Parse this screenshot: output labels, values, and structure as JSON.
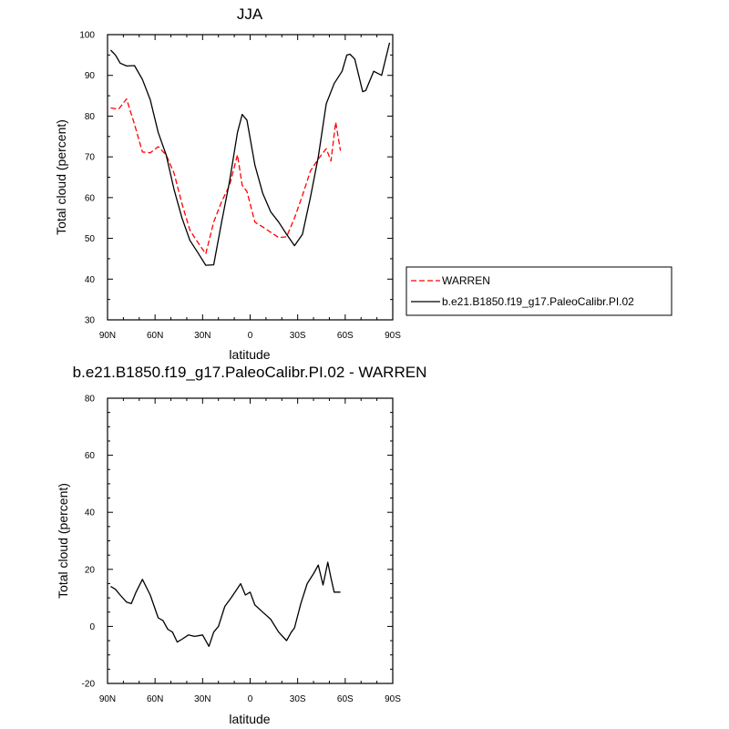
{
  "chart_data": [
    {
      "type": "line",
      "title": "JJA",
      "xlabel": "latitude",
      "ylabel": "Total cloud (percent)",
      "xlim": [
        90,
        -90
      ],
      "ylim": [
        30,
        100
      ],
      "xticks": [
        90,
        60,
        30,
        0,
        -30,
        -60,
        -90
      ],
      "xtick_labels": [
        "90N",
        "60N",
        "30N",
        "0",
        "30S",
        "60S",
        "90S"
      ],
      "yticks": [
        30,
        40,
        50,
        60,
        70,
        80,
        90,
        100
      ],
      "ytick_labels": [
        "30",
        "40",
        "50",
        "60",
        "70",
        "80",
        "90",
        "100"
      ],
      "legend": "outside-right",
      "series": [
        {
          "name": "WARREN",
          "color": "#ff0000",
          "style": "dashed",
          "x": [
            88,
            83,
            78,
            73,
            68,
            63,
            58,
            53,
            48,
            43,
            38,
            33,
            28,
            23,
            18,
            13,
            8,
            5,
            2,
            -3,
            -8,
            -13,
            -18,
            -23,
            -28,
            -33,
            -38,
            -43,
            -48,
            -51,
            -54,
            -57
          ],
          "y": [
            82,
            81.7,
            84.2,
            78,
            71.2,
            71,
            72.5,
            70.5,
            66,
            58.5,
            52,
            49,
            46.2,
            54,
            59,
            63,
            70.5,
            63,
            61.5,
            54,
            52.8,
            51.5,
            50.2,
            50.4,
            55,
            60.5,
            66.5,
            69.5,
            72,
            69,
            78.5,
            71.5
          ]
        },
        {
          "name": "b.e21.B1850.f19_g17.PaleoCalibr.PI.02",
          "color": "#000000",
          "style": "solid",
          "x": [
            88,
            85,
            82,
            78,
            73,
            68,
            63,
            58,
            53,
            48,
            43,
            38,
            33,
            28,
            23,
            18,
            13,
            8,
            5,
            2,
            -3,
            -8,
            -13,
            -18,
            -23,
            -28,
            -33,
            -38,
            -43,
            -48,
            -53,
            -58,
            -61,
            -63,
            -66,
            -71,
            -73,
            -78,
            -83,
            -88
          ],
          "y": [
            96.2,
            95,
            93,
            92.3,
            92.4,
            89,
            84,
            76,
            70.5,
            62,
            55,
            49.5,
            46.5,
            43.4,
            43.5,
            54,
            64,
            76,
            80.4,
            79,
            68,
            61,
            56.5,
            54,
            51,
            48.2,
            51,
            60,
            70,
            83,
            88,
            91,
            95,
            95.2,
            94,
            86,
            86.3,
            91,
            90,
            98
          ]
        }
      ]
    },
    {
      "type": "line",
      "title": "b.e21.B1850.f19_g17.PaleoCalibr.PI.02 - WARREN",
      "xlabel": "latitude",
      "ylabel": "Total cloud (percent)",
      "xlim": [
        90,
        -90
      ],
      "ylim": [
        -20,
        80
      ],
      "xticks": [
        90,
        60,
        30,
        0,
        -30,
        -60,
        -90
      ],
      "xtick_labels": [
        "90N",
        "60N",
        "30N",
        "0",
        "30S",
        "60S",
        "90S"
      ],
      "yticks": [
        -20,
        0,
        20,
        40,
        60,
        80
      ],
      "ytick_labels": [
        "-20",
        "0",
        "20",
        "40",
        "60",
        "80"
      ],
      "series": [
        {
          "color": "#000000",
          "style": "solid",
          "x": [
            88,
            85,
            82,
            78,
            75,
            72,
            68,
            63,
            58,
            55,
            52,
            49,
            46,
            43,
            39,
            35,
            30,
            26,
            23,
            20,
            16,
            12,
            6,
            3,
            0,
            -3,
            -8,
            -13,
            -18,
            -23,
            -26,
            -28,
            -32,
            -36,
            -40,
            -43,
            -46,
            -49,
            -51,
            -53,
            -55,
            -57
          ],
          "y": [
            14,
            13,
            11,
            8.5,
            8,
            12,
            16.5,
            11,
            3,
            2,
            -1,
            -2,
            -5.5,
            -4.5,
            -3,
            -3.5,
            -3,
            -7,
            -2,
            0,
            7,
            10,
            15,
            11,
            12,
            7.5,
            5,
            2.5,
            -2,
            -5,
            -2,
            -0.5,
            8,
            15,
            18.5,
            21.5,
            14.5,
            22.5,
            17,
            12,
            12,
            12
          ]
        }
      ]
    }
  ]
}
